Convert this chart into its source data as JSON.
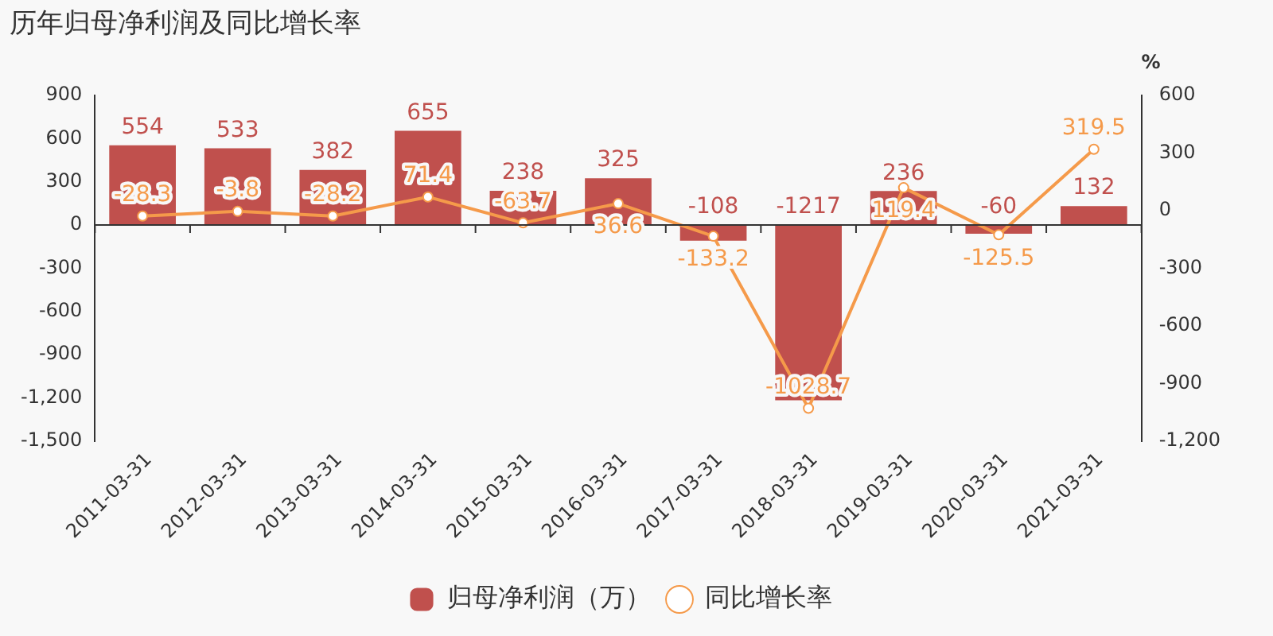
{
  "chart_data": {
    "type": "bar",
    "title": "历年归母净利润及同比增长率",
    "y2label": "%",
    "categories": [
      "2011-03-31",
      "2012-03-31",
      "2013-03-31",
      "2014-03-31",
      "2015-03-31",
      "2016-03-31",
      "2017-03-31",
      "2018-03-31",
      "2019-03-31",
      "2020-03-31",
      "2021-03-31"
    ],
    "series": [
      {
        "name": "归母净利润（万）",
        "color": "#c0504d",
        "values": [
          554,
          533,
          382,
          655,
          238,
          325,
          -108,
          -1217,
          236,
          -60,
          132
        ]
      },
      {
        "name": "同比增长率",
        "type": "line",
        "axis": "y2",
        "color": "#f59a4a",
        "marker": "circle",
        "values": [
          -28.3,
          -3.8,
          -28.2,
          71.4,
          -63.7,
          36.6,
          -133.2,
          -1028.7,
          119.4,
          -125.5,
          319.5
        ]
      }
    ],
    "ylim": [
      -1500,
      900
    ],
    "yticks": [
      {
        "value": -1500,
        "label": "-1,500"
      },
      {
        "value": -1200,
        "label": "-1,200"
      },
      -900,
      -600,
      -300,
      0,
      300,
      600,
      900
    ],
    "y2lim": [
      -1200,
      600
    ],
    "y2ticks": [
      {
        "value": -1200,
        "label": "-1,200"
      },
      -900,
      -600,
      -300,
      0,
      300,
      600
    ],
    "data_labels": true,
    "legend": "bottom"
  }
}
